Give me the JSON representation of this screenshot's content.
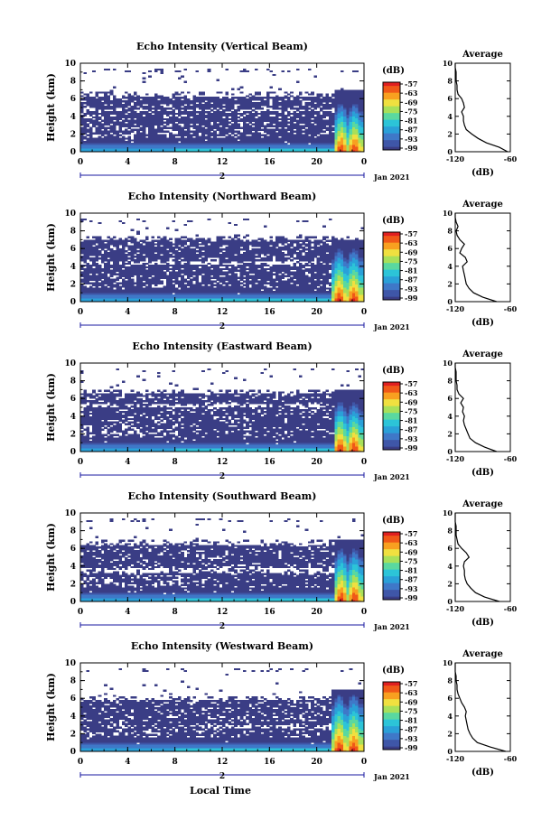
{
  "figure": {
    "xlabel": "Local Time",
    "date_label": "Jan 2021",
    "ylabel": "Height (km)",
    "colorbar_unit": "(dB)",
    "avg_title": "Average",
    "avg_xlabel": "(dB)"
  },
  "colors": {
    "background": "#ffffff",
    "low_echo": "#3a3d85",
    "colormap": [
      "#3a3d85",
      "#3f56a8",
      "#3f78c8",
      "#2aa0d8",
      "#2cc4d8",
      "#5ad8a0",
      "#a8e05a",
      "#f0e040",
      "#f8a020",
      "#f05818",
      "#e02020"
    ]
  },
  "chart_data": [
    {
      "type": "heatmap",
      "title": "Echo Intensity (Vertical Beam)",
      "x": {
        "label": "Local Time",
        "ticks": [
          "0",
          "4",
          "8",
          "12",
          "16",
          "20",
          "0"
        ],
        "range": [
          0,
          24
        ],
        "day_marker": "2",
        "date_label": "Jan 2021"
      },
      "y": {
        "label": "Height (km)",
        "ticks": [
          "0",
          "2",
          "4",
          "6",
          "8",
          "10"
        ],
        "range": [
          0,
          10
        ]
      },
      "colorbar": {
        "unit": "(dB)",
        "ticks": [
          "-57",
          "-63",
          "-69",
          "-75",
          "-81",
          "-87",
          "-93",
          "-99"
        ]
      },
      "echo_top_km": 6.3,
      "clear_layer_km": [
        4.5,
        4.9
      ],
      "strong_echo": {
        "start_hour": 21.5,
        "top_km": 5.5
      },
      "average_profile": {
        "title": "Average",
        "xlabel": "(dB)",
        "xticks": [
          "-120",
          "-60"
        ],
        "xlim": [
          -120,
          -60
        ],
        "ylim": [
          0,
          10
        ],
        "height_km": [
          0,
          0.5,
          1,
          1.5,
          2,
          2.5,
          3,
          3.5,
          4,
          4.5,
          5,
          5.5,
          6,
          6.5,
          7,
          7.5,
          8,
          8.5,
          9,
          9.5,
          10
        ],
        "db": [
          -63,
          -72,
          -86,
          -95,
          -102,
          -108,
          -110,
          -111,
          -111,
          -113,
          -110,
          -111,
          -113,
          -117,
          -118,
          -118,
          -119,
          -119,
          -119,
          -120,
          -120
        ]
      }
    },
    {
      "type": "heatmap",
      "title": "Echo Intensity (Northward Beam)",
      "x": {
        "label": "Local Time",
        "ticks": [
          "0",
          "4",
          "8",
          "12",
          "16",
          "20",
          "0"
        ],
        "range": [
          0,
          24
        ],
        "day_marker": "2",
        "date_label": "Jan 2021"
      },
      "y": {
        "label": "Height (km)",
        "ticks": [
          "0",
          "2",
          "4",
          "6",
          "8",
          "10"
        ],
        "range": [
          0,
          10
        ]
      },
      "colorbar": {
        "unit": "(dB)",
        "ticks": [
          "-57",
          "-63",
          "-69",
          "-75",
          "-81",
          "-87",
          "-93",
          "-99"
        ]
      },
      "echo_top_km": 7.0,
      "clear_layer_km": [
        4.2,
        4.6
      ],
      "strong_echo": {
        "start_hour": 21.3,
        "top_km": 6.0
      },
      "average_profile": {
        "title": "Average",
        "xlabel": "(dB)",
        "xticks": [
          "-120",
          "-60"
        ],
        "xlim": [
          -120,
          -60
        ],
        "ylim": [
          0,
          10
        ],
        "height_km": [
          0,
          0.5,
          1,
          1.5,
          2,
          2.5,
          3,
          3.5,
          4,
          4.5,
          5,
          5.5,
          6,
          6.5,
          7,
          7.5,
          8,
          8.5,
          9,
          9.5,
          10
        ],
        "db": [
          -75,
          -90,
          -100,
          -105,
          -108,
          -109,
          -110,
          -111,
          -112,
          -107,
          -109,
          -115,
          -113,
          -110,
          -115,
          -118,
          -119,
          -117,
          -119,
          -120,
          -120
        ]
      }
    },
    {
      "type": "heatmap",
      "title": "Echo Intensity (Eastward Beam)",
      "x": {
        "label": "Local Time",
        "ticks": [
          "0",
          "4",
          "8",
          "12",
          "16",
          "20",
          "0"
        ],
        "range": [
          0,
          24
        ],
        "day_marker": "2",
        "date_label": "Jan 2021"
      },
      "y": {
        "label": "Height (km)",
        "ticks": [
          "0",
          "2",
          "4",
          "6",
          "8",
          "10"
        ],
        "range": [
          0,
          10
        ]
      },
      "colorbar": {
        "unit": "(dB)",
        "ticks": [
          "-57",
          "-63",
          "-69",
          "-75",
          "-81",
          "-87",
          "-93",
          "-99"
        ]
      },
      "echo_top_km": 6.6,
      "clear_layer_km": [
        4.9,
        5.4
      ],
      "strong_echo": {
        "start_hour": 21.4,
        "top_km": 5.6
      },
      "average_profile": {
        "title": "Average",
        "xlabel": "(dB)",
        "xticks": [
          "-120",
          "-60"
        ],
        "xlim": [
          -120,
          -60
        ],
        "ylim": [
          0,
          10
        ],
        "height_km": [
          0,
          0.5,
          1,
          1.5,
          2,
          2.5,
          3,
          3.5,
          4,
          4.5,
          5,
          5.5,
          6,
          6.5,
          7,
          7.5,
          8,
          8.5,
          9,
          9.5,
          10
        ],
        "db": [
          -75,
          -88,
          -98,
          -104,
          -106,
          -108,
          -110,
          -111,
          -110,
          -112,
          -111,
          -114,
          -111,
          -116,
          -118,
          -118,
          -119,
          -119,
          -119,
          -120,
          -120
        ]
      }
    },
    {
      "type": "heatmap",
      "title": "Echo Intensity (Southward Beam)",
      "x": {
        "label": "Local Time",
        "ticks": [
          "0",
          "4",
          "8",
          "12",
          "16",
          "20",
          "0"
        ],
        "range": [
          0,
          24
        ],
        "day_marker": "2",
        "date_label": "Jan 2021"
      },
      "y": {
        "label": "Height (km)",
        "ticks": [
          "0",
          "2",
          "4",
          "6",
          "8",
          "10"
        ],
        "range": [
          0,
          10
        ]
      },
      "colorbar": {
        "unit": "(dB)",
        "ticks": [
          "-57",
          "-63",
          "-69",
          "-75",
          "-81",
          "-87",
          "-93",
          "-99"
        ]
      },
      "echo_top_km": 6.4,
      "clear_layer_km": [
        3.3,
        3.8
      ],
      "strong_echo": {
        "start_hour": 21.5,
        "top_km": 6.0
      },
      "average_profile": {
        "title": "Average",
        "xlabel": "(dB)",
        "xticks": [
          "-120",
          "-60"
        ],
        "xlim": [
          -120,
          -60
        ],
        "ylim": [
          0,
          10
        ],
        "height_km": [
          0,
          0.5,
          1,
          1.5,
          2,
          2.5,
          3,
          3.5,
          4,
          4.5,
          5,
          5.5,
          6,
          6.5,
          7,
          7.5,
          8,
          8.5,
          9,
          9.5,
          10
        ],
        "db": [
          -72,
          -88,
          -98,
          -103,
          -107,
          -109,
          -110,
          -110,
          -111,
          -110,
          -105,
          -108,
          -113,
          -117,
          -118,
          -119,
          -119,
          -119,
          -120,
          -120,
          -120
        ]
      }
    },
    {
      "type": "heatmap",
      "title": "Echo Intensity (Westward Beam)",
      "x": {
        "label": "Local Time",
        "ticks": [
          "0",
          "4",
          "8",
          "12",
          "16",
          "20",
          "0"
        ],
        "range": [
          0,
          24
        ],
        "day_marker": "2",
        "date_label": "Jan 2021"
      },
      "y": {
        "label": "Height (km)",
        "ticks": [
          "0",
          "2",
          "4",
          "6",
          "8",
          "10"
        ],
        "range": [
          0,
          10
        ]
      },
      "colorbar": {
        "unit": "(dB)",
        "ticks": [
          "-57",
          "-63",
          "-69",
          "-75",
          "-81",
          "-87",
          "-93",
          "-99"
        ]
      },
      "echo_top_km": 5.8,
      "clear_layer_km": [
        2.6,
        3.0
      ],
      "strong_echo": {
        "start_hour": 21.3,
        "top_km": 6.5
      },
      "average_profile": {
        "title": "Average",
        "xlabel": "(dB)",
        "xticks": [
          "-120",
          "-60"
        ],
        "xlim": [
          -120,
          -60
        ],
        "ylim": [
          0,
          10
        ],
        "height_km": [
          0,
          0.5,
          1,
          1.5,
          2,
          2.5,
          3,
          3.5,
          4,
          4.5,
          5,
          5.5,
          6,
          6.5,
          7,
          7.5,
          8,
          8.5,
          9,
          9.5,
          10
        ],
        "db": [
          -65,
          -82,
          -96,
          -101,
          -104,
          -106,
          -107,
          -108,
          -109,
          -108,
          -110,
          -113,
          -115,
          -117,
          -118,
          -118,
          -119,
          -119,
          -120,
          -120,
          -120
        ]
      }
    }
  ]
}
